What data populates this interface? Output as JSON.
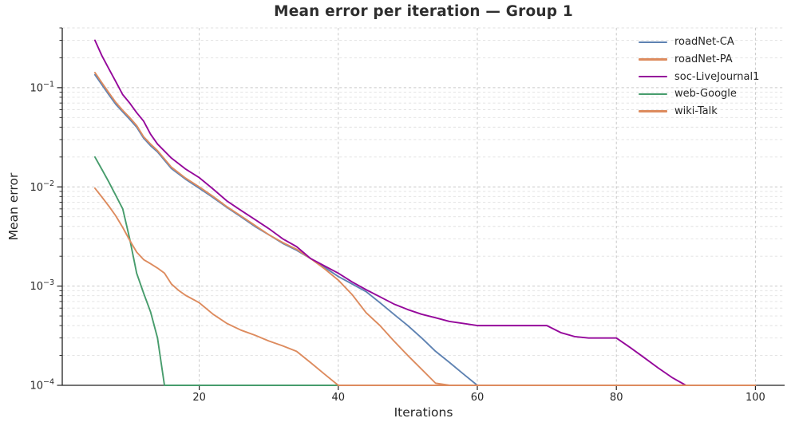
{
  "chart_data": {
    "type": "line",
    "title": "Mean error per iteration — Group 1",
    "xlabel": "Iterations",
    "ylabel": "Mean error",
    "xscale": "linear",
    "yscale": "log",
    "xlim": [
      0.3,
      104.2
    ],
    "ylim": [
      0.0001,
      0.4
    ],
    "xticks": [
      20,
      40,
      60,
      80,
      100
    ],
    "ytick_exponents": [
      -1,
      -2,
      -3,
      -4
    ],
    "grid": true,
    "grid_style": "dashed",
    "legend_position": "upper right",
    "legend_frame": false,
    "axis_color": "#222222",
    "major_grid_color": "#c9c9c9",
    "minor_grid_color": "#e0e0e0",
    "series": [
      {
        "name": "roadNet-CA",
        "color": "#5e82b2",
        "x": [
          5,
          6,
          7,
          8,
          9,
          10,
          11,
          12,
          13,
          14,
          16,
          18,
          20,
          22,
          24,
          26,
          28,
          30,
          32,
          34,
          36,
          38,
          40,
          42,
          44,
          46,
          48,
          50,
          52,
          54,
          56,
          58,
          60,
          65,
          70,
          75,
          80,
          85,
          90,
          95,
          100
        ],
        "y": [
          0.135,
          0.107,
          0.085,
          0.068,
          0.057,
          0.048,
          0.04,
          0.031,
          0.026,
          0.0225,
          0.0153,
          0.012,
          0.0097,
          0.0078,
          0.0062,
          0.005,
          0.004,
          0.0033,
          0.0027,
          0.0023,
          0.0019,
          0.00155,
          0.00125,
          0.00105,
          0.00088,
          0.00068,
          0.00052,
          0.0004,
          0.0003,
          0.00022,
          0.00017,
          0.00013,
          0.0001,
          0.0001,
          0.0001,
          0.0001,
          0.0001,
          0.0001,
          0.0001,
          0.0001,
          0.0001
        ]
      },
      {
        "name": "roadNet-PA",
        "color": "#dd8b5e",
        "x": [
          5,
          6,
          7,
          8,
          9,
          10,
          11,
          12,
          13,
          14,
          16,
          18,
          20,
          22,
          24,
          26,
          28,
          30,
          32,
          34,
          36,
          38,
          40,
          42,
          44,
          46,
          48,
          50,
          52,
          54,
          56,
          58,
          60,
          65,
          70,
          75,
          80,
          85,
          90,
          95,
          100
        ],
        "y": [
          0.142,
          0.112,
          0.089,
          0.071,
          0.059,
          0.05,
          0.0415,
          0.032,
          0.027,
          0.0232,
          0.0158,
          0.0123,
          0.01,
          0.008,
          0.0063,
          0.0051,
          0.0041,
          0.0033,
          0.00275,
          0.00235,
          0.0019,
          0.0015,
          0.00115,
          0.00082,
          0.00054,
          0.0004,
          0.00028,
          0.0002,
          0.000145,
          0.000105,
          0.0001,
          0.0001,
          0.0001,
          0.0001,
          0.0001,
          0.0001,
          0.0001,
          0.0001,
          0.0001,
          0.0001,
          0.0001
        ]
      },
      {
        "name": "soc-LiveJournal1",
        "color": "#95089b",
        "x": [
          5,
          6,
          7,
          8,
          9,
          10,
          11,
          12,
          13,
          14,
          16,
          18,
          20,
          22,
          24,
          26,
          28,
          30,
          32,
          34,
          36,
          38,
          40,
          42,
          44,
          46,
          48,
          50,
          52,
          54,
          56,
          58,
          60,
          62,
          64,
          66,
          68,
          70,
          72,
          74,
          76,
          78,
          80,
          82,
          84,
          86,
          88,
          90,
          95,
          100
        ],
        "y": [
          0.3,
          0.21,
          0.155,
          0.115,
          0.085,
          0.07,
          0.056,
          0.046,
          0.034,
          0.027,
          0.0195,
          0.0152,
          0.0124,
          0.0095,
          0.0072,
          0.0058,
          0.0047,
          0.0038,
          0.003,
          0.0025,
          0.0019,
          0.0016,
          0.00135,
          0.0011,
          0.00092,
          0.00078,
          0.00066,
          0.00058,
          0.00052,
          0.00048,
          0.00044,
          0.00042,
          0.0004,
          0.0004,
          0.0004,
          0.0004,
          0.0004,
          0.0004,
          0.00034,
          0.00031,
          0.0003,
          0.0003,
          0.0003,
          0.00024,
          0.00019,
          0.00015,
          0.00012,
          0.0001,
          0.0001,
          0.0001
        ]
      },
      {
        "name": "web-Google",
        "color": "#479c6c",
        "x": [
          5,
          6,
          7,
          8,
          9,
          10,
          11,
          12,
          13,
          14,
          15,
          20,
          25,
          30,
          35,
          40,
          45,
          50,
          55,
          60,
          65,
          70,
          75,
          80,
          85,
          90,
          95,
          100
        ],
        "y": [
          0.02,
          0.015,
          0.0112,
          0.0082,
          0.006,
          0.003,
          0.00135,
          0.00085,
          0.00055,
          0.0003,
          0.0001,
          0.0001,
          0.0001,
          0.0001,
          0.0001,
          0.0001,
          0.0001,
          0.0001,
          0.0001,
          0.0001,
          0.0001,
          0.0001,
          0.0001,
          0.0001,
          0.0001,
          0.0001,
          0.0001,
          0.0001
        ]
      },
      {
        "name": "wiki-Talk",
        "color": "#dd8b5e",
        "x": [
          5,
          6,
          7,
          8,
          9,
          10,
          11,
          12,
          13,
          14,
          15,
          16,
          17,
          18,
          20,
          22,
          24,
          26,
          28,
          30,
          32,
          34,
          36,
          38,
          40,
          45,
          50,
          55,
          60,
          65,
          70,
          75,
          80,
          85,
          90,
          95,
          100
        ],
        "y": [
          0.0097,
          0.0079,
          0.0064,
          0.0051,
          0.0039,
          0.0029,
          0.0022,
          0.00185,
          0.00168,
          0.00152,
          0.00135,
          0.00105,
          0.00091,
          0.00081,
          0.00068,
          0.00052,
          0.00042,
          0.00036,
          0.00032,
          0.00028,
          0.00025,
          0.00022,
          0.00017,
          0.00013,
          0.0001,
          0.0001,
          0.0001,
          0.0001,
          0.0001,
          0.0001,
          0.0001,
          0.0001,
          0.0001,
          0.0001,
          0.0001,
          0.0001,
          0.0001
        ]
      }
    ]
  }
}
